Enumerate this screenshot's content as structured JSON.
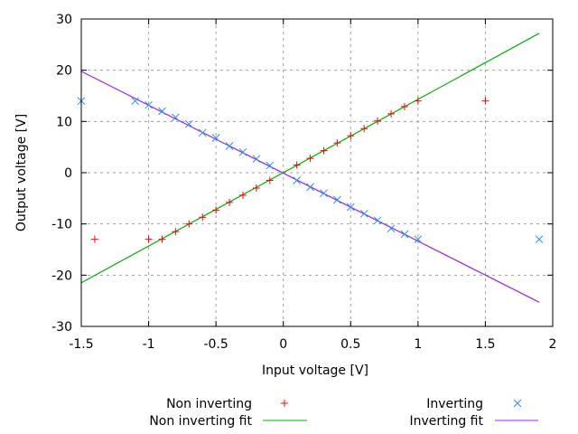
{
  "chart_data": {
    "type": "scatter",
    "xlabel": "Input voltage [V]",
    "ylabel": "Output voltage [V]",
    "xlim": [
      -1.5,
      2
    ],
    "ylim": [
      -30,
      30
    ],
    "xticks": [
      -1.5,
      -1,
      -0.5,
      0,
      0.5,
      1,
      1.5,
      2
    ],
    "xtick_labels": [
      "-1.5",
      "-1",
      "-0.5",
      "0",
      "0.5",
      "1",
      "1.5",
      "2"
    ],
    "yticks": [
      -30,
      -20,
      -10,
      0,
      10,
      20,
      30
    ],
    "ytick_labels": [
      "-30",
      "-20",
      "-10",
      "0",
      "10",
      "20",
      "30"
    ],
    "grid": true,
    "legend_placement": "bottom",
    "series": [
      {
        "name": "Non inverting",
        "marker": "plus",
        "color": "#ff0000",
        "x": [
          -1.4,
          -1,
          -0.9,
          -0.8,
          -0.7,
          -0.6,
          -0.5,
          -0.4,
          -0.3,
          -0.2,
          -0.1,
          0.1,
          0.2,
          0.3,
          0.4,
          0.5,
          0.6,
          0.7,
          0.8,
          0.9,
          1,
          1.5
        ],
        "y": [
          -13,
          -13,
          -13,
          -11.5,
          -10,
          -8.7,
          -7.3,
          -5.8,
          -4.4,
          -3,
          -1.5,
          1.5,
          2.8,
          4.3,
          5.8,
          7.2,
          8.6,
          10.1,
          11.5,
          12.9,
          14,
          14
        ]
      },
      {
        "name": "Non inverting fit",
        "type": "line",
        "color": "#00b000",
        "slope": 14.32,
        "intercept": 0.0,
        "x_range": [
          -1.5,
          1.9
        ]
      },
      {
        "name": "Inverting",
        "marker": "cross",
        "color": "#1e90ff",
        "x": [
          -1.5,
          -1.1,
          -1,
          -0.9,
          -0.8,
          -0.7,
          -0.6,
          -0.5,
          -0.4,
          -0.3,
          -0.2,
          -0.1,
          0.1,
          0.2,
          0.3,
          0.4,
          0.5,
          0.6,
          0.7,
          0.8,
          0.9,
          1,
          1.9
        ],
        "y": [
          14,
          14,
          13.2,
          12,
          10.8,
          9.5,
          7.8,
          6.8,
          5.2,
          4,
          2.7,
          1.4,
          -1.5,
          -2.8,
          -4,
          -5.3,
          -6.7,
          -8,
          -9.3,
          -10.9,
          -12,
          -13,
          -13
        ]
      },
      {
        "name": "Inverting fit",
        "type": "line",
        "color": "#a020f0",
        "slope": -13.26,
        "intercept": -0.1,
        "x_range": [
          -1.5,
          1.9
        ]
      }
    ]
  }
}
